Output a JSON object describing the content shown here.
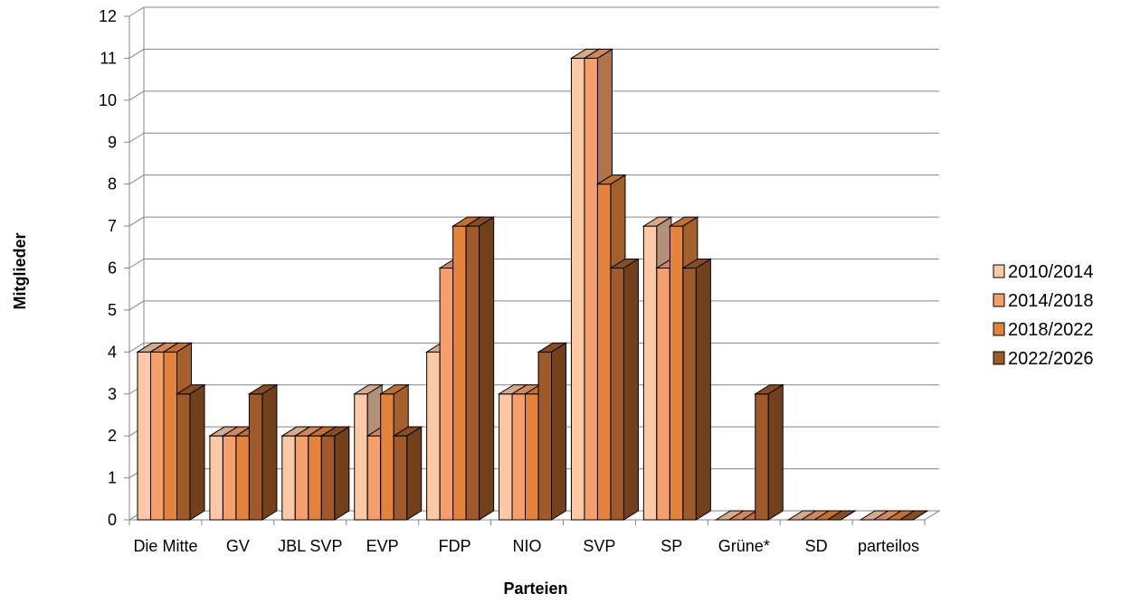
{
  "chart_data": {
    "type": "bar",
    "title": "",
    "xlabel": "Parteien",
    "ylabel": "Mitglieder",
    "ylim": [
      0,
      12
    ],
    "yticks": [
      "0",
      "1",
      "2",
      "3",
      "4",
      "5",
      "6",
      "7",
      "8",
      "9",
      "10",
      "11",
      "12"
    ],
    "grid": true,
    "legend_position": "right",
    "style": "3d-column",
    "categories": [
      "Die Mitte",
      "GV",
      "JBL SVP",
      "EVP",
      "FDP",
      "NIO",
      "SVP",
      "SP",
      "Grüne*",
      "SD",
      "parteilos"
    ],
    "series": [
      {
        "name": "2010/2014",
        "color": "#fbc8a8",
        "values": [
          4,
          2,
          2,
          3,
          4,
          3,
          11,
          7,
          0,
          0,
          0
        ]
      },
      {
        "name": "2014/2018",
        "color": "#f3a06d",
        "values": [
          4,
          2,
          2,
          2,
          6,
          3,
          11,
          6,
          0,
          0,
          0
        ]
      },
      {
        "name": "2018/2022",
        "color": "#e2843d",
        "values": [
          4,
          2,
          2,
          3,
          7,
          3,
          8,
          7,
          0,
          0,
          0
        ]
      },
      {
        "name": "2022/2026",
        "color": "#a0592a",
        "values": [
          3,
          3,
          2,
          2,
          7,
          4,
          6,
          6,
          3,
          0,
          0
        ]
      }
    ]
  }
}
